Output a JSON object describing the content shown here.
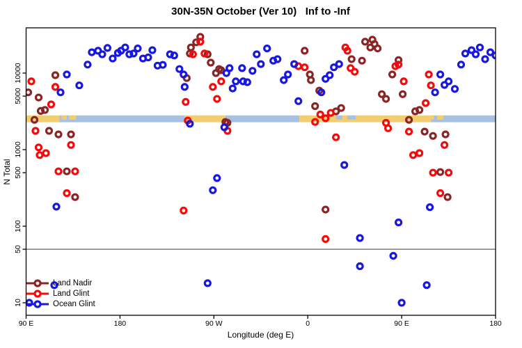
{
  "title": "30N-35N October (Ver 10)   Inf to -Inf",
  "axes": {
    "x_label": "Longitude (deg E)",
    "y_label": "N Total"
  },
  "legend": {
    "entries": [
      {
        "label": "Land Nadir",
        "color": "#8B2525"
      },
      {
        "label": "Land Glint",
        "color": "#F50A0A"
      },
      {
        "label": "Ocean Glint",
        "color": "#1717E0"
      }
    ]
  },
  "chart_data": {
    "type": "scatter",
    "title": "30N-35N October (Ver 10)   Inf to -Inf",
    "xlabel": "Longitude (deg E)",
    "ylabel": "N Total",
    "y_scale": "log",
    "ylim": [
      7,
      40000
    ],
    "x_axis": {
      "note": "longitude axis wraps eastward from 90E; values are deg east of 0 continuing past 360",
      "range": [
        90,
        540
      ],
      "ticks": [
        {
          "lon": 90,
          "label": "90 E"
        },
        {
          "lon": 180,
          "label": "180"
        },
        {
          "lon": 270,
          "label": "90 W"
        },
        {
          "lon": 360,
          "label": "0"
        },
        {
          "lon": 450,
          "label": "90 E"
        },
        {
          "lon": 540,
          "label": "180"
        }
      ]
    },
    "y_axis": {
      "ticks": [
        {
          "v": 10000,
          "label": "10000"
        },
        {
          "v": 5000,
          "label": "5000"
        },
        {
          "v": 1000,
          "label": "1000"
        },
        {
          "v": 500,
          "label": "500"
        },
        {
          "v": 100,
          "label": "100"
        },
        {
          "v": 50,
          "label": "50"
        },
        {
          "v": 10,
          "label": "10"
        }
      ]
    },
    "hline": {
      "value": 50,
      "color": "#7a7a7a"
    },
    "band": {
      "description": "land/ocean map strip at 30N-35N",
      "value_top": 2800,
      "value_bottom": 2280,
      "colors": {
        "land": "#F2CE73",
        "ocean": "#A9C1E0"
      },
      "segments": [
        {
          "from": 90,
          "to": 122,
          "kind": "land"
        },
        {
          "from": 122,
          "to": 242,
          "kind": "ocean"
        },
        {
          "from": 242,
          "to": 281,
          "kind": "land"
        },
        {
          "from": 281,
          "to": 352,
          "kind": "ocean"
        },
        {
          "from": 352,
          "to": 478,
          "kind": "land"
        },
        {
          "from": 478,
          "to": 540,
          "kind": "ocean"
        }
      ],
      "patches": [
        {
          "from": 124,
          "to": 129,
          "kind": "land"
        },
        {
          "from": 131,
          "to": 138,
          "kind": "land"
        },
        {
          "from": 387,
          "to": 393,
          "kind": "ocean"
        },
        {
          "from": 398,
          "to": 406,
          "kind": "ocean"
        },
        {
          "from": 478,
          "to": 481,
          "kind": "land"
        },
        {
          "from": 484,
          "to": 490,
          "kind": "land"
        }
      ]
    },
    "series": [
      {
        "name": "Land Nadir",
        "color": "#8B2525",
        "points": [
          [
            92,
            5600
          ],
          [
            98,
            2450
          ],
          [
            102,
            4800
          ],
          [
            104,
            3200
          ],
          [
            108,
            3300
          ],
          [
            112,
            1760
          ],
          [
            118,
            9400
          ],
          [
            121,
            1580
          ],
          [
            129,
            520
          ],
          [
            133,
            1580
          ],
          [
            137,
            240
          ],
          [
            244,
            8600
          ],
          [
            247,
            18000
          ],
          [
            248,
            21600
          ],
          [
            253,
            25200
          ],
          [
            257,
            29700
          ],
          [
            264,
            17600
          ],
          [
            267,
            13700
          ],
          [
            272,
            10000
          ],
          [
            275,
            11300
          ],
          [
            277,
            10900
          ],
          [
            281,
            2300
          ],
          [
            283,
            2240
          ],
          [
            357,
            19600
          ],
          [
            362,
            9600
          ],
          [
            363,
            8100
          ],
          [
            367,
            3700
          ],
          [
            371,
            5900
          ],
          [
            377,
            165
          ],
          [
            387,
            3160
          ],
          [
            392,
            3500
          ],
          [
            402,
            15200
          ],
          [
            412,
            14500
          ],
          [
            415,
            25700
          ],
          [
            420,
            21600
          ],
          [
            422,
            27300
          ],
          [
            424,
            24000
          ],
          [
            427,
            21000
          ],
          [
            431,
            5300
          ],
          [
            435,
            4600
          ],
          [
            441,
            9600
          ],
          [
            447,
            14800
          ],
          [
            451,
            5300
          ],
          [
            457,
            2450
          ],
          [
            463,
            3160
          ],
          [
            467,
            3300
          ],
          [
            472,
            1720
          ],
          [
            480,
            1510
          ],
          [
            487,
            510
          ],
          [
            492,
            1580
          ],
          [
            494,
            240
          ]
        ]
      },
      {
        "name": "Land Glint",
        "color": "#F50A0A",
        "points": [
          [
            95,
            7800
          ],
          [
            99,
            1760
          ],
          [
            102,
            1070
          ],
          [
            103,
            850
          ],
          [
            109,
            900
          ],
          [
            114,
            3900
          ],
          [
            118,
            6600
          ],
          [
            121,
            520
          ],
          [
            129,
            270
          ],
          [
            133,
            1150
          ],
          [
            137,
            520
          ],
          [
            241,
            160
          ],
          [
            243,
            4200
          ],
          [
            245,
            2400
          ],
          [
            250,
            17600
          ],
          [
            257,
            25700
          ],
          [
            261,
            18000
          ],
          [
            269,
            6600
          ],
          [
            273,
            4600
          ],
          [
            277,
            7800
          ],
          [
            283,
            1760
          ],
          [
            351,
            12300
          ],
          [
            357,
            11900
          ],
          [
            367,
            2300
          ],
          [
            372,
            2880
          ],
          [
            377,
            2570
          ],
          [
            377,
            68
          ],
          [
            382,
            3020
          ],
          [
            387,
            1450
          ],
          [
            396,
            21600
          ],
          [
            398,
            19600
          ],
          [
            401,
            11600
          ],
          [
            405,
            10400
          ],
          [
            435,
            2240
          ],
          [
            437,
            1900
          ],
          [
            444,
            12300
          ],
          [
            447,
            12900
          ],
          [
            452,
            7800
          ],
          [
            457,
            1720
          ],
          [
            461,
            850
          ],
          [
            467,
            900
          ],
          [
            473,
            4060
          ],
          [
            476,
            9600
          ],
          [
            478,
            6900
          ],
          [
            480,
            500
          ],
          [
            487,
            270
          ],
          [
            491,
            1150
          ],
          [
            495,
            500
          ]
        ]
      },
      {
        "name": "Ocean Glint",
        "color": "#1717E0",
        "points": [
          [
            93,
            10
          ],
          [
            117,
            17
          ],
          [
            119,
            180
          ],
          [
            123,
            5600
          ],
          [
            129,
            9600
          ],
          [
            141,
            6900
          ],
          [
            149,
            12900
          ],
          [
            153,
            18700
          ],
          [
            159,
            19600
          ],
          [
            163,
            17600
          ],
          [
            168,
            21300
          ],
          [
            173,
            15500
          ],
          [
            178,
            18300
          ],
          [
            181,
            19600
          ],
          [
            185,
            21600
          ],
          [
            189,
            17600
          ],
          [
            193,
            18000
          ],
          [
            197,
            21000
          ],
          [
            202,
            15500
          ],
          [
            207,
            16000
          ],
          [
            211,
            19900
          ],
          [
            216,
            12500
          ],
          [
            221,
            12800
          ],
          [
            228,
            17600
          ],
          [
            232,
            17000
          ],
          [
            237,
            11300
          ],
          [
            241,
            9600
          ],
          [
            242,
            6600
          ],
          [
            247,
            2180
          ],
          [
            264,
            18
          ],
          [
            269,
            295
          ],
          [
            273,
            425
          ],
          [
            280,
            1960
          ],
          [
            282,
            10000
          ],
          [
            285,
            11600
          ],
          [
            288,
            6300
          ],
          [
            291,
            7800
          ],
          [
            297,
            11600
          ],
          [
            298,
            7800
          ],
          [
            302,
            7600
          ],
          [
            307,
            10700
          ],
          [
            311,
            17600
          ],
          [
            315,
            13100
          ],
          [
            321,
            21000
          ],
          [
            327,
            14500
          ],
          [
            331,
            15200
          ],
          [
            337,
            8100
          ],
          [
            341,
            9600
          ],
          [
            347,
            13100
          ],
          [
            351,
            4300
          ],
          [
            373,
            5600
          ],
          [
            377,
            8400
          ],
          [
            381,
            9400
          ],
          [
            385,
            11900
          ],
          [
            390,
            13100
          ],
          [
            395,
            630
          ],
          [
            410,
            70
          ],
          [
            410,
            30
          ],
          [
            442,
            41
          ],
          [
            447,
            112
          ],
          [
            450,
            10
          ],
          [
            474,
            17
          ],
          [
            477,
            177
          ],
          [
            482,
            5600
          ],
          [
            487,
            9600
          ],
          [
            491,
            7000
          ],
          [
            495,
            7800
          ],
          [
            501,
            6200
          ],
          [
            507,
            12900
          ],
          [
            511,
            18000
          ],
          [
            517,
            19900
          ],
          [
            521,
            17600
          ],
          [
            525,
            21600
          ],
          [
            530,
            15200
          ],
          [
            535,
            18700
          ],
          [
            540,
            17000
          ]
        ]
      }
    ]
  }
}
